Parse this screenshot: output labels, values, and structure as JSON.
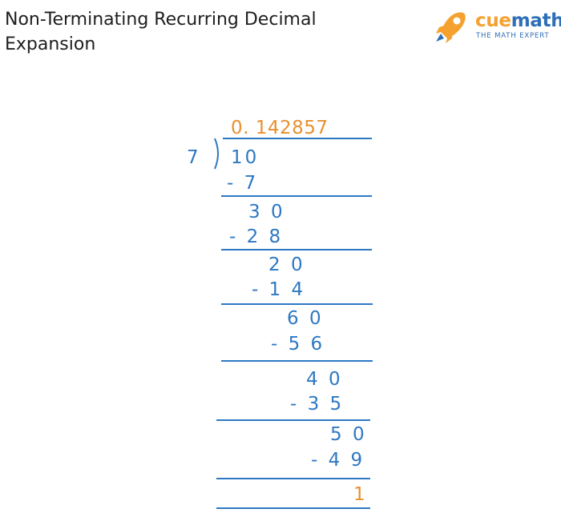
{
  "title": "Non-Terminating Recurring Decimal Expansion",
  "logo": {
    "brand_part1": "cue",
    "brand_part2": "math",
    "tagline": "THE MATH EXPERT",
    "icon": "rocket-icon"
  },
  "division": {
    "quotient": "0. 142857",
    "divisor": "7",
    "dividend": "10",
    "steps": [
      {
        "subtract": "- 7"
      },
      {
        "remainder": "3 0",
        "subtract": "- 2 8"
      },
      {
        "remainder": "2 0",
        "subtract": "- 1 4"
      },
      {
        "remainder": "6 0",
        "subtract": "- 5 6"
      },
      {
        "remainder": "4 0",
        "subtract": "- 3 5"
      },
      {
        "remainder": "5 0",
        "subtract": "- 4 9"
      }
    ],
    "final_remainder": "1"
  },
  "colors": {
    "digits": "#2e78c3",
    "highlight": "#e8902e",
    "title": "#1e1e1e",
    "brand_orange": "#f5a12f",
    "brand_blue": "#2e6fb7"
  }
}
